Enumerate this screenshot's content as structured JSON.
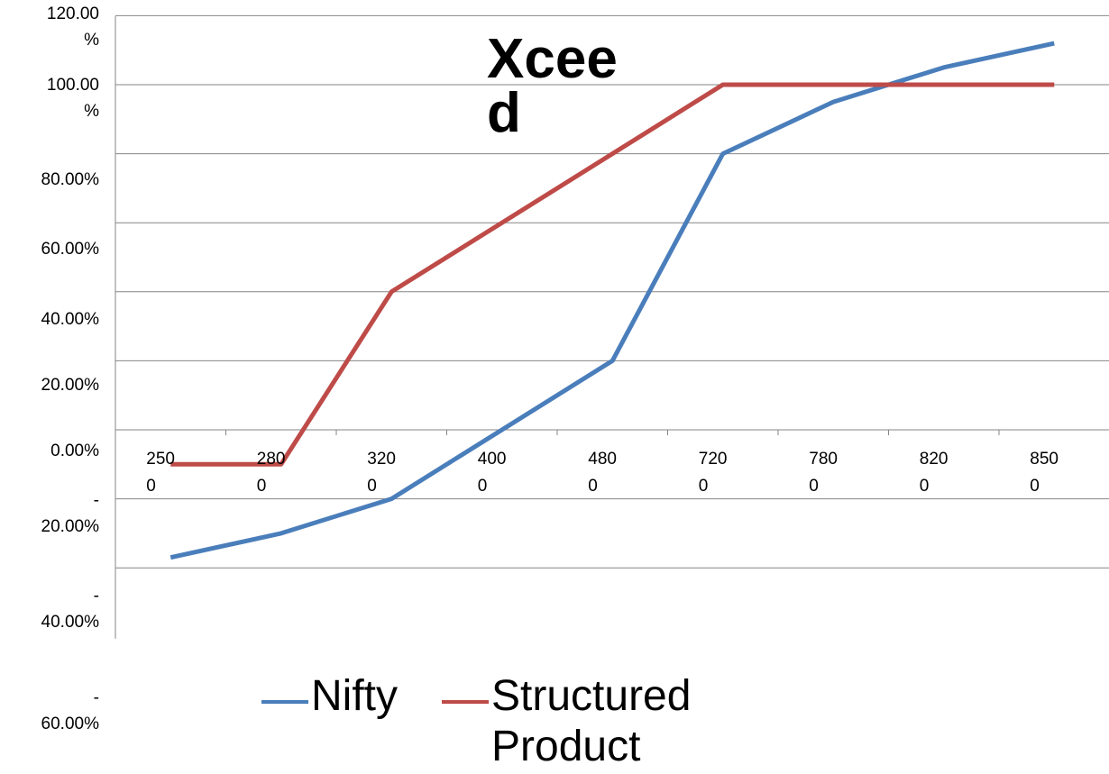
{
  "chart_data": {
    "type": "line",
    "title": "Xcee\nd",
    "categories": [
      "250\n0",
      "280\n0",
      "320\n0",
      "400\n0",
      "480\n0",
      "720\n0",
      "780\n0",
      "820\n0",
      "850\n0"
    ],
    "ylim": [
      -0.6,
      1.2
    ],
    "y_ticks": [
      {
        "value": 1.2,
        "label": "120.00\n%"
      },
      {
        "value": 1.0,
        "label": "100.00\n%"
      },
      {
        "value": 0.8,
        "label": "80.00%"
      },
      {
        "value": 0.6,
        "label": "60.00%"
      },
      {
        "value": 0.4,
        "label": "40.00%"
      },
      {
        "value": 0.2,
        "label": "20.00%"
      },
      {
        "value": 0.0,
        "label": "0.00%"
      },
      {
        "value": -0.2,
        "label": "-\n20.00%"
      },
      {
        "value": -0.4,
        "label": "-\n40.00%"
      },
      {
        "value": -0.6,
        "label": "-\n60.00%"
      }
    ],
    "grid": true,
    "legend_position": "bottom",
    "series": [
      {
        "name": "Nifty",
        "color": "#4a7ebb",
        "values": [
          -0.37,
          -0.3,
          -0.2,
          0.0,
          0.2,
          0.8,
          0.95,
          1.05,
          1.12
        ]
      },
      {
        "name": "Structured\nProduct",
        "color": "#be4b48",
        "values": [
          -0.1,
          -0.1,
          0.4,
          0.6,
          0.8,
          1.0,
          1.0,
          1.0,
          1.0
        ]
      }
    ]
  }
}
